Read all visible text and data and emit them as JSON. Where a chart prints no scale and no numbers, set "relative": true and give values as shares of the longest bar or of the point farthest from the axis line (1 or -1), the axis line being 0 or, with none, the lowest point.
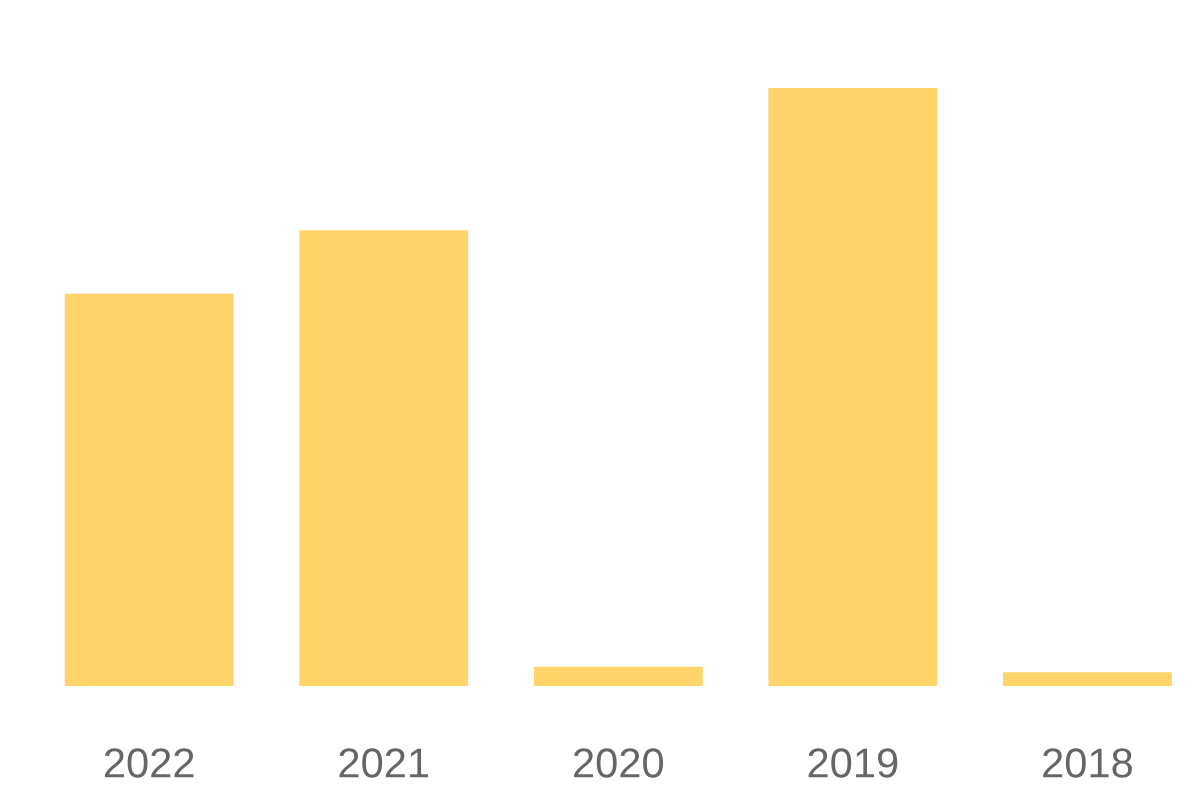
{
  "chart_data": {
    "type": "bar",
    "categories": [
      "2022",
      "2021",
      "2020",
      "2019",
      "2018"
    ],
    "values": [
      0.656,
      0.762,
      0.032,
      1,
      0.023
    ],
    "color": "#ffd56b",
    "relative": true
  }
}
